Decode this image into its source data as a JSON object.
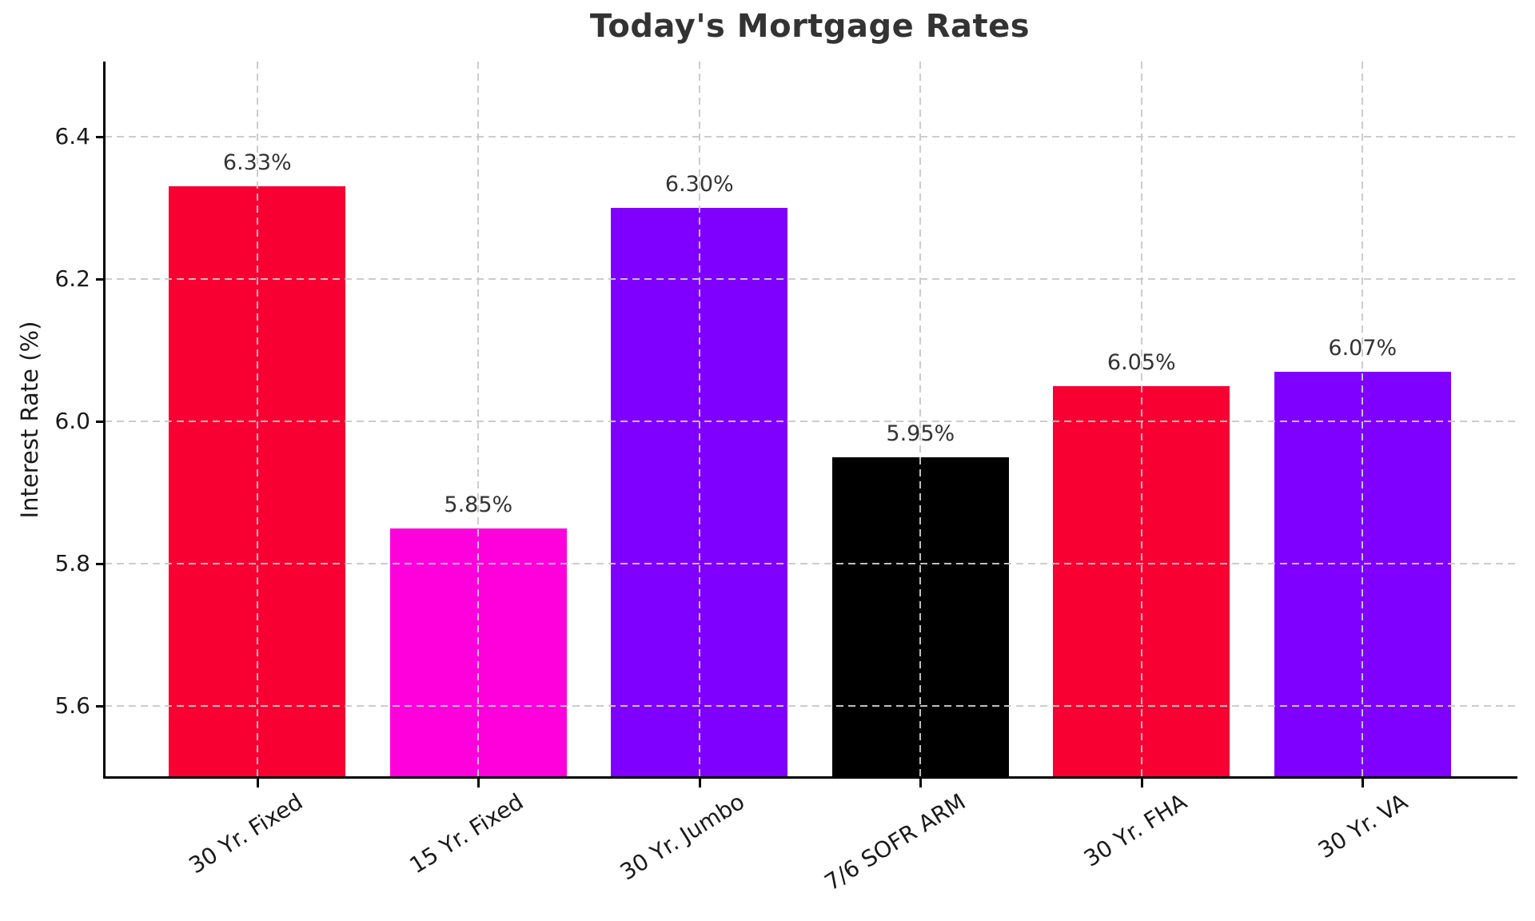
{
  "chart_data": {
    "type": "bar",
    "title": "Today's Mortgage Rates",
    "xlabel": "",
    "ylabel": "Interest Rate (%)",
    "categories": [
      "30 Yr. Fixed",
      "15 Yr. Fixed",
      "30 Yr. Jumbo",
      "7/6 SOFR ARM",
      "30 Yr. FHA",
      "30 Yr. VA"
    ],
    "values": [
      6.33,
      5.85,
      6.3,
      5.95,
      6.05,
      6.07
    ],
    "value_labels": [
      "6.33%",
      "5.85%",
      "6.30%",
      "5.95%",
      "6.05%",
      "6.07%"
    ],
    "bar_colors": [
      "#F80031",
      "#FF00DC",
      "#7F00FF",
      "#000000",
      "#F80031",
      "#7F00FF"
    ],
    "yticks": [
      5.6,
      5.8,
      6.0,
      6.2,
      6.4
    ],
    "ytick_labels": [
      "5.6",
      "5.8",
      "6.0",
      "6.2",
      "6.4"
    ],
    "ylim": [
      5.5,
      6.51
    ],
    "grid": {
      "visible": true,
      "style": "dashed",
      "color": "#c9c9c9",
      "axes": "both",
      "drawn_above_bars": true
    },
    "legend": "none",
    "colors": {
      "background": "#ffffff",
      "axis_spine": "#000000",
      "title_text": "#333333",
      "tick_text": "#1a1a1a",
      "value_text": "#333333"
    }
  }
}
